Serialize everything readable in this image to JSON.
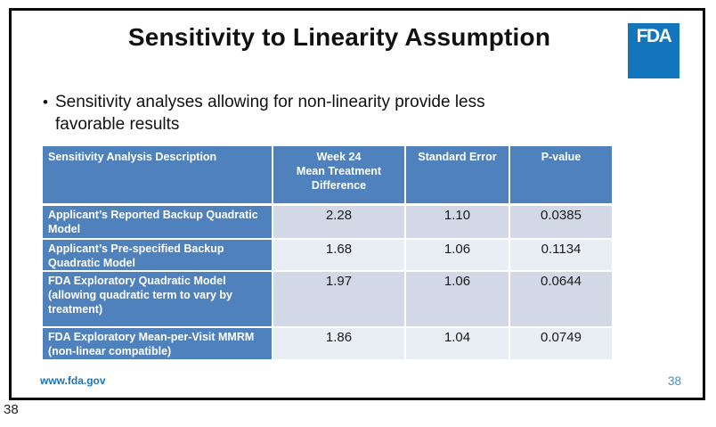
{
  "slide": {
    "title": "Sensitivity to Linearity Assumption",
    "bullet_text": "Sensitivity analyses allowing for non-linearity provide less favorable results",
    "footer_url": "www.fda.gov",
    "slide_number": "38"
  },
  "logo": {
    "text": "FDA",
    "color": "#1375BC"
  },
  "page": {
    "corner_number": "38"
  },
  "table": {
    "headers": {
      "description": "Sensitivity Analysis Description",
      "week24": "Week 24\nMean Treatment\nDifference",
      "std_error": "Standard Error",
      "p_value": "P-value"
    },
    "rows": [
      {
        "label": "Applicant’s Reported Backup Quadratic Model",
        "week24_diff": "2.28",
        "std_error": "1.10",
        "p_value": "0.0385"
      },
      {
        "label": "Applicant’s Pre-specified Backup Quadratic Model",
        "week24_diff": "1.68",
        "std_error": "1.06",
        "p_value": "0.1134"
      },
      {
        "label": "FDA Exploratory Quadratic Model (allowing quadratic term to vary by treatment)",
        "week24_diff": "1.97",
        "std_error": "1.06",
        "p_value": "0.0644"
      },
      {
        "label": "FDA Exploratory Mean-per-Visit MMRM (non-linear compatible)",
        "week24_diff": "1.86",
        "std_error": "1.04",
        "p_value": "0.0749"
      }
    ]
  },
  "colors": {
    "header_blue": "#4F81BD",
    "row_band_dark": "#D2D8E6",
    "row_band_light": "#E9EDF4",
    "footer_link_blue": "#1774BB",
    "slide_number_blue": "#3F8FCB",
    "logo_blue": "#1375BC",
    "border_black": "#0a0a0a"
  }
}
